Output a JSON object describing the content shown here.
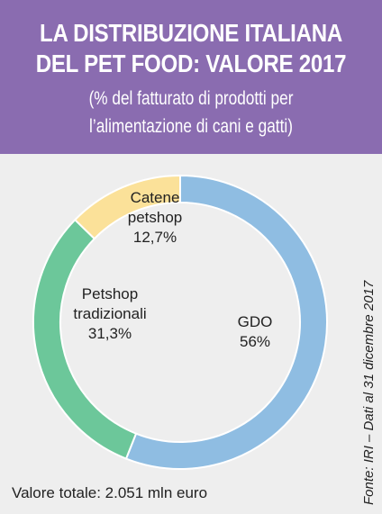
{
  "header": {
    "title_line1": "LA DISTRIBUZIONE ITALIANA",
    "title_line2": "DEL PET FOOD: VALORE 2017",
    "subtitle_line1": "(% del fatturato di prodotti per",
    "subtitle_line2": "l’alimentazione di cani e gatti)"
  },
  "colors": {
    "header_bg": "#8a6cb0",
    "panel_bg": "#eeeeee",
    "gdo": "#8fbde2",
    "petshop_tradizionali": "#6cc79a",
    "catene_petshop": "#fbe199"
  },
  "chart_data": {
    "type": "pie",
    "donut": true,
    "slices": [
      {
        "label_lines": [
          "GDO"
        ],
        "value_label": "56%",
        "value": 56,
        "color": "#8fbde2"
      },
      {
        "label_lines": [
          "Petshop",
          "tradizionali"
        ],
        "value_label": "31,3%",
        "value": 31.3,
        "color": "#6cc79a"
      },
      {
        "label_lines": [
          "Catene",
          "petshop"
        ],
        "value_label": "12,7%",
        "value": 12.7,
        "color": "#fbe199"
      }
    ]
  },
  "footer": {
    "total": "Valore totale: 2.051 mln euro",
    "source": "Fonte: IRI – Dati al 31 dicembre 2017"
  }
}
